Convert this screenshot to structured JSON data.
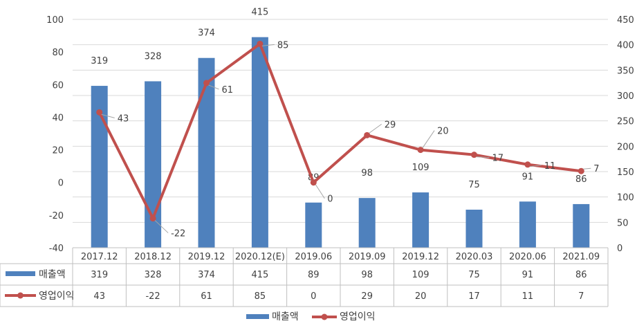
{
  "chart_data": {
    "type": "bar",
    "categories": [
      "2017.12",
      "2018.12",
      "2019.12",
      "2020.12(E)",
      "2019.06",
      "2019.09",
      "2019.12",
      "2020.03",
      "2020.06",
      "2021.09"
    ],
    "series": [
      {
        "name": "매출액",
        "type": "bar",
        "axis": "right",
        "values": [
          319,
          328,
          374,
          415,
          89,
          98,
          109,
          75,
          91,
          86
        ],
        "color": "#4f81bd"
      },
      {
        "name": "영업이익",
        "type": "line",
        "axis": "left",
        "values": [
          43,
          -22,
          61,
          85,
          0,
          29,
          20,
          17,
          11,
          7
        ],
        "color": "#c0504d"
      }
    ],
    "left_axis": {
      "min": -40,
      "max": 100,
      "step": 20,
      "ticks": [
        "-40",
        "-20",
        "0",
        "20",
        "40",
        "60",
        "80",
        "100"
      ]
    },
    "right_axis": {
      "min": 0,
      "max": 450,
      "step": 50,
      "ticks": [
        "0",
        "50",
        "100",
        "150",
        "200",
        "250",
        "300",
        "350",
        "400",
        "450"
      ]
    },
    "legend_position": "bottom",
    "grid": true,
    "data_table": true
  }
}
